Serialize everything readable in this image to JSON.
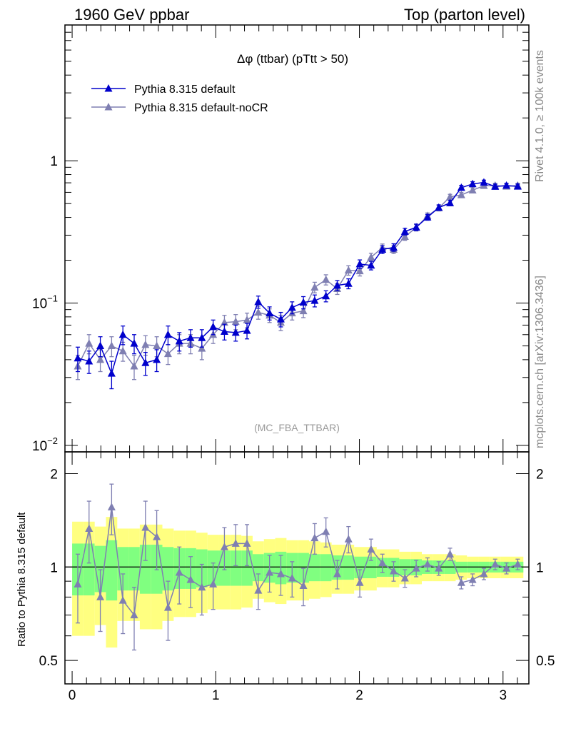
{
  "header": {
    "left": "1960 GeV ppbar",
    "right": "Top (parton level)"
  },
  "side_labels": {
    "rivet": "Rivet 4.1.0, ≥ 100k events",
    "mcplots": "mcplots.cern.ch [arXiv:1306.3436]"
  },
  "analysis_id": "(MC_FBA_TTBAR)",
  "colors": {
    "default": "#0000cc",
    "nocr": "#7f7fb2",
    "band_outer": "#ffff80",
    "band_inner": "#80ff80"
  },
  "chart_data": [
    {
      "type": "line",
      "title": "Δφ (ttbar) (pTtt > 50)",
      "yscale": "log",
      "xlim": [
        -0.05,
        3.18
      ],
      "ylim": [
        0.009,
        9
      ],
      "yticks": [
        {
          "value": 1,
          "label": "1"
        },
        {
          "value": 0.1,
          "label": "10−1"
        },
        {
          "value": 0.01,
          "label": "10−2"
        }
      ],
      "x": [
        0.0393,
        0.1178,
        0.1963,
        0.2749,
        0.3534,
        0.432,
        0.5105,
        0.589,
        0.6676,
        0.7461,
        0.8247,
        0.9032,
        0.9817,
        1.0603,
        1.1388,
        1.2174,
        1.2959,
        1.3744,
        1.453,
        1.5315,
        1.6101,
        1.6886,
        1.7671,
        1.8457,
        1.9242,
        2.0028,
        2.0813,
        2.1598,
        2.2384,
        2.3169,
        2.3955,
        2.474,
        2.5525,
        2.6311,
        2.7096,
        2.7882,
        2.8667,
        2.9452,
        3.0238,
        3.1023
      ],
      "series": [
        {
          "name": "Pythia 8.315 default",
          "values": [
            0.041,
            0.039,
            0.05,
            0.032,
            0.06,
            0.052,
            0.038,
            0.04,
            0.06,
            0.054,
            0.057,
            0.057,
            0.068,
            0.063,
            0.062,
            0.064,
            0.102,
            0.085,
            0.077,
            0.093,
            0.101,
            0.104,
            0.112,
            0.133,
            0.137,
            0.188,
            0.184,
            0.238,
            0.246,
            0.318,
            0.341,
            0.401,
            0.469,
            0.505,
            0.647,
            0.687,
            0.705,
            0.659,
            0.67,
            0.66
          ],
          "errors": [
            0.008,
            0.007,
            0.008,
            0.007,
            0.009,
            0.008,
            0.007,
            0.007,
            0.009,
            0.008,
            0.008,
            0.008,
            0.008,
            0.008,
            0.008,
            0.008,
            0.01,
            0.009,
            0.009,
            0.009,
            0.01,
            0.01,
            0.01,
            0.011,
            0.011,
            0.013,
            0.013,
            0.015,
            0.015,
            0.017,
            0.018,
            0.019,
            0.021,
            0.022,
            0.025,
            0.026,
            0.026,
            0.025,
            0.025,
            0.025
          ]
        },
        {
          "name": "Pythia 8.315 default-noCR",
          "values": [
            0.036,
            0.052,
            0.04,
            0.05,
            0.046,
            0.036,
            0.051,
            0.05,
            0.044,
            0.052,
            0.052,
            0.048,
            0.06,
            0.073,
            0.074,
            0.076,
            0.086,
            0.082,
            0.073,
            0.085,
            0.088,
            0.129,
            0.146,
            0.126,
            0.17,
            0.168,
            0.21,
            0.245,
            0.238,
            0.293,
            0.339,
            0.41,
            0.465,
            0.558,
            0.575,
            0.621,
            0.668,
            0.67,
            0.66,
            0.67
          ],
          "errors": [
            0.007,
            0.008,
            0.007,
            0.008,
            0.007,
            0.007,
            0.008,
            0.008,
            0.007,
            0.008,
            0.008,
            0.008,
            0.008,
            0.009,
            0.009,
            0.009,
            0.009,
            0.009,
            0.009,
            0.009,
            0.009,
            0.011,
            0.012,
            0.011,
            0.013,
            0.013,
            0.014,
            0.015,
            0.015,
            0.017,
            0.018,
            0.02,
            0.021,
            0.023,
            0.024,
            0.025,
            0.025,
            0.025,
            0.025,
            0.025
          ]
        }
      ]
    },
    {
      "type": "line",
      "ylabel": "Ratio to Pythia 8.315 default",
      "xlim": [
        -0.05,
        3.18
      ],
      "ylim": [
        0.42,
        2.35
      ],
      "yscale": "log",
      "yticks": [
        {
          "value": 2,
          "label": "2"
        },
        {
          "value": 1,
          "label": "1"
        },
        {
          "value": 0.5,
          "label": "0.5"
        }
      ],
      "xticks": [
        {
          "value": 0,
          "label": "0"
        },
        {
          "value": 1,
          "label": "1"
        },
        {
          "value": 2,
          "label": "2"
        },
        {
          "value": 3,
          "label": "3"
        }
      ],
      "band_edges": [
        0,
        0.0785,
        0.1571,
        0.2356,
        0.3142,
        0.3927,
        0.4712,
        0.5498,
        0.6283,
        0.7069,
        0.7854,
        0.8639,
        0.9425,
        1.021,
        1.0996,
        1.1781,
        1.2566,
        1.3352,
        1.4137,
        1.4923,
        1.5708,
        1.6493,
        1.7279,
        1.8064,
        1.885,
        1.9635,
        2.042,
        2.1206,
        2.1991,
        2.2777,
        2.3562,
        2.4347,
        2.5133,
        2.5918,
        2.6704,
        2.7489,
        2.8274,
        2.906,
        2.9845,
        3.0631,
        3.1416
      ],
      "band_inner_halfwidth": [
        0.19,
        0.19,
        0.17,
        0.22,
        0.16,
        0.16,
        0.18,
        0.18,
        0.16,
        0.15,
        0.15,
        0.14,
        0.13,
        0.13,
        0.13,
        0.13,
        0.1,
        0.11,
        0.12,
        0.11,
        0.11,
        0.1,
        0.1,
        0.09,
        0.09,
        0.08,
        0.08,
        0.07,
        0.07,
        0.06,
        0.06,
        0.05,
        0.05,
        0.05,
        0.04,
        0.04,
        0.04,
        0.04,
        0.04,
        0.04
      ],
      "band_outer_halfwidth": [
        0.4,
        0.4,
        0.35,
        0.45,
        0.33,
        0.33,
        0.37,
        0.37,
        0.33,
        0.31,
        0.31,
        0.29,
        0.27,
        0.27,
        0.27,
        0.26,
        0.21,
        0.23,
        0.24,
        0.22,
        0.22,
        0.21,
        0.2,
        0.18,
        0.18,
        0.16,
        0.16,
        0.14,
        0.14,
        0.12,
        0.12,
        0.1,
        0.1,
        0.1,
        0.09,
        0.08,
        0.08,
        0.08,
        0.08,
        0.08
      ],
      "series": [
        {
          "name": "Pythia 8.315 default-noCR",
          "values": [
            0.88,
            1.33,
            0.8,
            1.56,
            0.78,
            0.7,
            1.34,
            1.25,
            0.74,
            0.96,
            0.91,
            0.86,
            0.88,
            1.16,
            1.19,
            1.19,
            0.84,
            0.96,
            0.95,
            0.92,
            0.87,
            1.24,
            1.3,
            0.95,
            1.23,
            0.89,
            1.14,
            1.03,
            0.97,
            0.92,
            0.99,
            1.02,
            0.99,
            1.1,
            0.89,
            0.91,
            0.95,
            1.02,
            0.99,
            1.02
          ],
          "errors": [
            0.22,
            0.3,
            0.18,
            0.29,
            0.17,
            0.16,
            0.29,
            0.27,
            0.16,
            0.2,
            0.17,
            0.16,
            0.15,
            0.18,
            0.18,
            0.18,
            0.11,
            0.13,
            0.14,
            0.12,
            0.12,
            0.14,
            0.14,
            0.1,
            0.12,
            0.09,
            0.09,
            0.07,
            0.07,
            0.06,
            0.06,
            0.05,
            0.05,
            0.05,
            0.04,
            0.04,
            0.04,
            0.04,
            0.04,
            0.04
          ]
        }
      ]
    }
  ]
}
